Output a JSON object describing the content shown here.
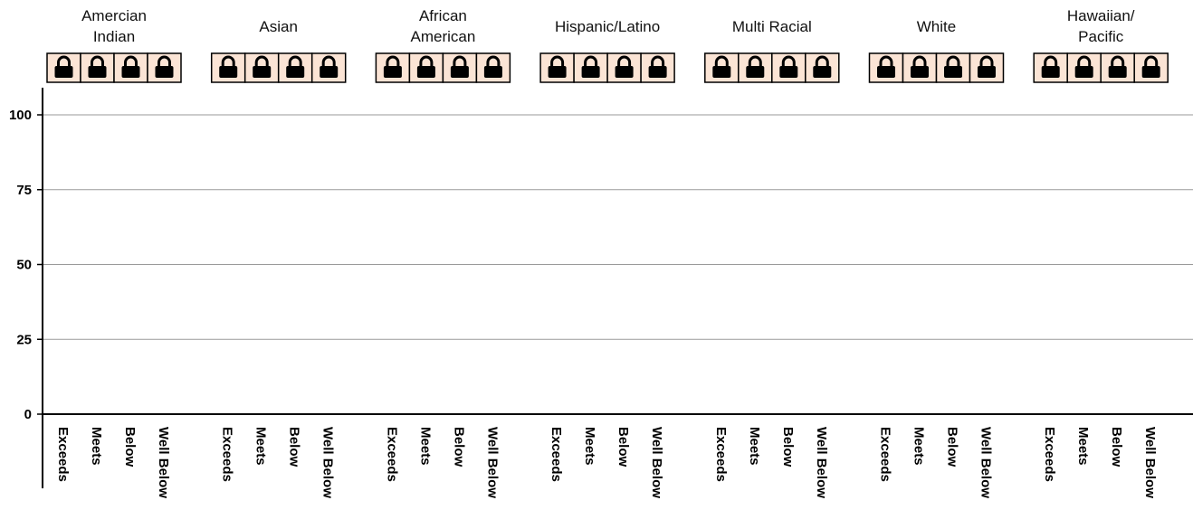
{
  "chart_data": {
    "type": "bar",
    "title": "",
    "xlabel": "",
    "ylabel": "",
    "ylim": [
      0,
      100
    ],
    "yticks": [
      0,
      25,
      50,
      75,
      100
    ],
    "grid": true,
    "legend": "none",
    "groups": [
      {
        "label_lines": [
          "Amercian",
          "Indian"
        ],
        "categories": [
          "Exceeds",
          "Meets",
          "Below",
          "Well Below"
        ],
        "values": [
          null,
          null,
          null,
          null
        ],
        "locked": [
          true,
          true,
          true,
          true
        ]
      },
      {
        "label_lines": [
          "Asian"
        ],
        "categories": [
          "Exceeds",
          "Meets",
          "Below",
          "Well Below"
        ],
        "values": [
          null,
          null,
          null,
          null
        ],
        "locked": [
          true,
          true,
          true,
          true
        ]
      },
      {
        "label_lines": [
          "African",
          "American"
        ],
        "categories": [
          "Exceeds",
          "Meets",
          "Below",
          "Well Below"
        ],
        "values": [
          null,
          null,
          null,
          null
        ],
        "locked": [
          true,
          true,
          true,
          true
        ]
      },
      {
        "label_lines": [
          "Hispanic/Latino"
        ],
        "categories": [
          "Exceeds",
          "Meets",
          "Below",
          "Well Below"
        ],
        "values": [
          null,
          null,
          null,
          null
        ],
        "locked": [
          true,
          true,
          true,
          true
        ]
      },
      {
        "label_lines": [
          "Multi Racial"
        ],
        "categories": [
          "Exceeds",
          "Meets",
          "Below",
          "Well Below"
        ],
        "values": [
          null,
          null,
          null,
          null
        ],
        "locked": [
          true,
          true,
          true,
          true
        ]
      },
      {
        "label_lines": [
          "White"
        ],
        "categories": [
          "Exceeds",
          "Meets",
          "Below",
          "Well Below"
        ],
        "values": [
          null,
          null,
          null,
          null
        ],
        "locked": [
          true,
          true,
          true,
          true
        ]
      },
      {
        "label_lines": [
          "Hawaiian/",
          "Pacific"
        ],
        "categories": [
          "Exceeds",
          "Meets",
          "Below",
          "Well Below"
        ],
        "values": [
          null,
          null,
          null,
          null
        ],
        "locked": [
          true,
          true,
          true,
          true
        ]
      }
    ]
  },
  "colors": {
    "lock_box_fill": "#fbe4d5",
    "lock_box_stroke": "#000000",
    "lock_icon": "#000000",
    "gridline": "#9a9a9a",
    "axis": "#000000"
  },
  "icons": {
    "lock": "lock-icon"
  }
}
